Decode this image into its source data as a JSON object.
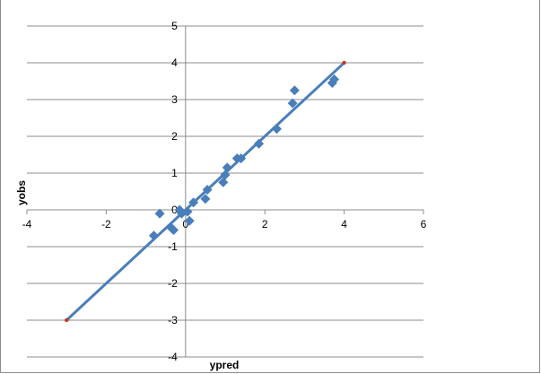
{
  "chart_data": {
    "type": "scatter",
    "xlabel": "ypred",
    "ylabel": "yobs",
    "xlim": [
      -4,
      6
    ],
    "ylim": [
      -4,
      5
    ],
    "x_ticks": [
      -4,
      -2,
      0,
      2,
      4,
      6
    ],
    "y_ticks": [
      -4,
      -3,
      -2,
      -1,
      0,
      1,
      2,
      3,
      4,
      5
    ],
    "x_tick_labels": [
      "-4",
      "-2",
      "0",
      "2",
      "4",
      "6"
    ],
    "y_tick_labels": [
      "-4",
      "-3",
      "-2",
      "-1",
      "0",
      "1",
      "2",
      "3",
      "4",
      "5"
    ],
    "grid": "horizontal",
    "colors": {
      "points": "#4a7ebb",
      "line": "#4a7ebb",
      "line_endpoints": "#c0392b"
    },
    "series": [
      {
        "type": "scatter",
        "marker": "diamond",
        "points": [
          [
            -0.8,
            -0.7
          ],
          [
            -0.65,
            -0.1
          ],
          [
            -0.35,
            -0.5
          ],
          [
            -0.3,
            -0.55
          ],
          [
            -0.15,
            0.0
          ],
          [
            -0.1,
            -0.1
          ],
          [
            0.05,
            -0.05
          ],
          [
            0.1,
            -0.3
          ],
          [
            0.2,
            0.2
          ],
          [
            0.5,
            0.3
          ],
          [
            0.55,
            0.55
          ],
          [
            0.95,
            0.75
          ],
          [
            1.0,
            0.95
          ],
          [
            1.05,
            1.15
          ],
          [
            1.3,
            1.4
          ],
          [
            1.4,
            1.4
          ],
          [
            1.85,
            1.8
          ],
          [
            2.3,
            2.2
          ],
          [
            2.7,
            2.9
          ],
          [
            2.75,
            3.25
          ],
          [
            3.7,
            3.45
          ],
          [
            3.75,
            3.55
          ]
        ]
      },
      {
        "type": "line",
        "points": [
          [
            -3,
            -3
          ],
          [
            4,
            4
          ]
        ]
      }
    ]
  }
}
